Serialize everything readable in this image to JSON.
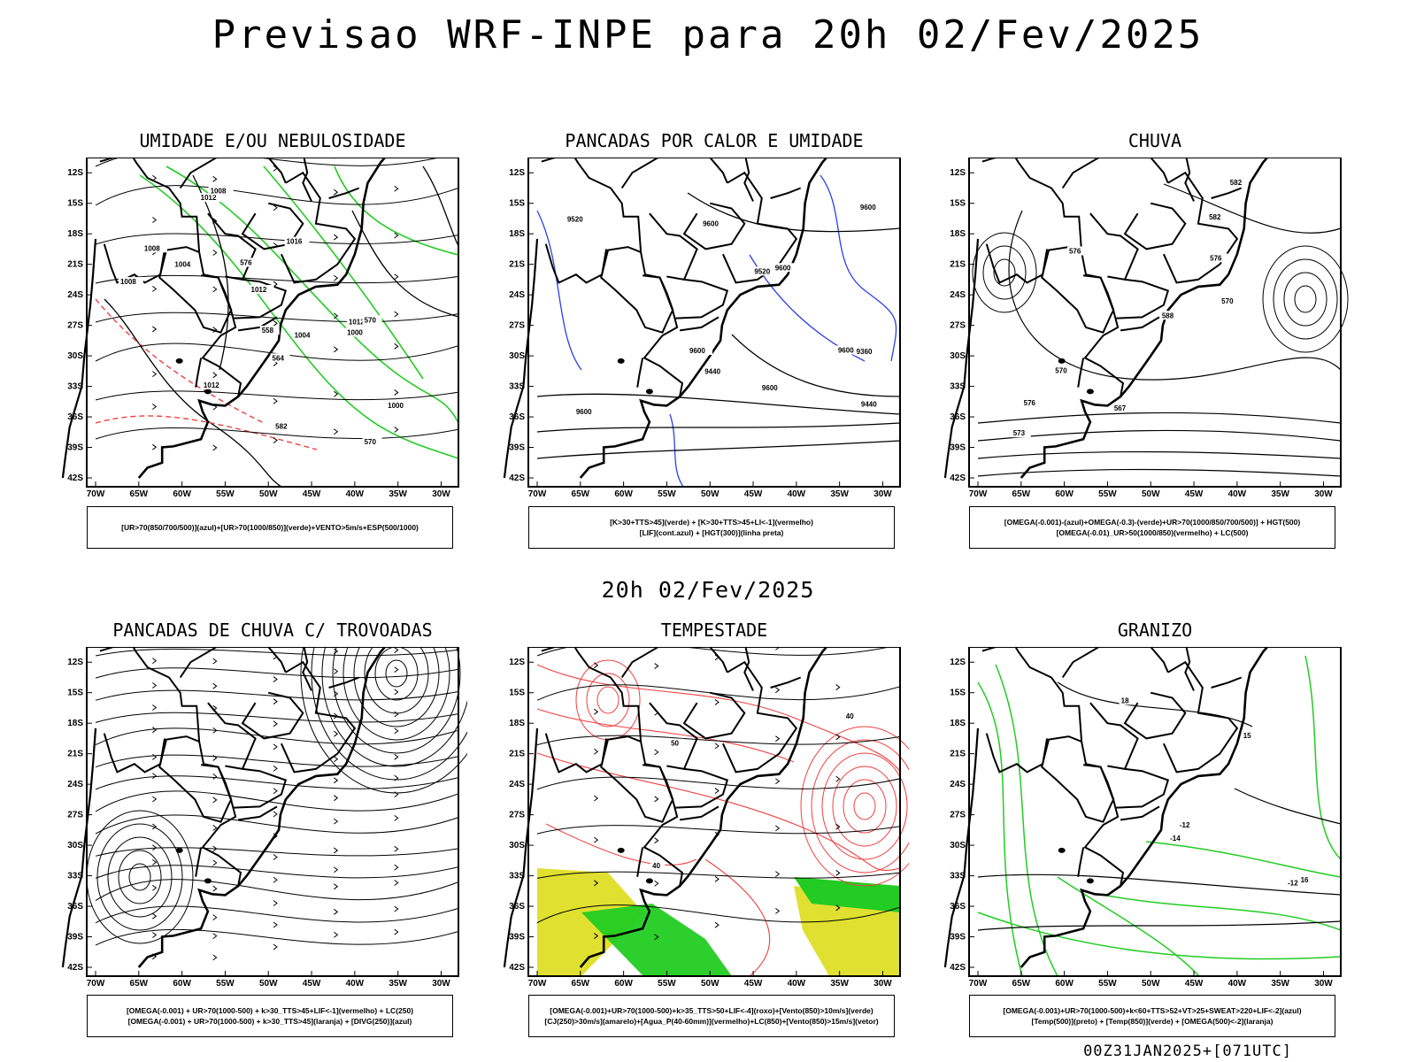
{
  "title": "Previsao WRF-INPE  para 20h 02/Fev/2025",
  "mid_title": "20h 02/Fev/2025",
  "footer": "00Z31JAN2025+[071UTC]",
  "lat_ticks": [
    "12S",
    "15S",
    "18S",
    "21S",
    "24S",
    "27S",
    "30S",
    "33S",
    "36S",
    "39S",
    "42S"
  ],
  "lon_ticks": [
    "70W",
    "65W",
    "60W",
    "55W",
    "50W",
    "45W",
    "40W",
    "35W",
    "30W"
  ],
  "colors": {
    "blue": "#2a3fe8",
    "green": "#22cc22",
    "red": "#f04040",
    "darkteal": "#1f4a45",
    "yellow": "#e0e030",
    "orange": "#f08020",
    "lavender": "#a0a0f0",
    "purple": "#b020c0"
  },
  "panels": [
    {
      "id": "umidade",
      "title": "UMIDADE E/OU NEBULOSIDADE",
      "legend": [
        "[UR>70(850/700/500)](azul)+[UR>70(1000/850)](verde)+VENTO>5m/s+ESP(500/1000)"
      ],
      "contour_labels": [
        "1004",
        "1008",
        "1012",
        "1012",
        "1012",
        "1016",
        "1008",
        "1004",
        "1000",
        "1000",
        "1008",
        "1012",
        "570",
        "570",
        "564",
        "582",
        "576",
        "558"
      ]
    },
    {
      "id": "pancadas_calor",
      "title": "PANCADAS POR CALOR E UMIDADE",
      "legend": [
        "[K>30+TTS>45](verde) + [K>30+TTS>45+LI<-1](vermelho)",
        "[LIF](cont.azul) + [HGT(300)](linha preta)"
      ],
      "contour_labels": [
        "9600",
        "9600",
        "9600",
        "9600",
        "9600",
        "9520",
        "9520",
        "9440",
        "9440",
        "9360",
        "9600",
        "9600"
      ]
    },
    {
      "id": "chuva",
      "title": "CHUVA",
      "legend": [
        "[OMEGA(-0.001)-(azul)+OMEGA(-0.3)-(verde)+UR>70(1000/850/700/500)] + HGT(500)",
        "[OMEGA(-0.01)_UR>50(1000/850)(vermelho) + LC(500)"
      ],
      "contour_labels": [
        "582",
        "576",
        "576",
        "582",
        "588",
        "570",
        "573",
        "567",
        "576",
        "570"
      ]
    },
    {
      "id": "trovoadas",
      "title": "PANCADAS DE CHUVA C/ TROVOADAS",
      "legend": [
        "[OMEGA(-0.001) + UR>70(1000-500) + k>30_TTS>45+LIF<-1](vermelho) + LC(250)",
        "[OMEGA(-0.001) + UR>70(1000-500) + k>30_TTS>45](laranja) + [DIVG(250)](azul)"
      ],
      "contour_labels": []
    },
    {
      "id": "tempestade",
      "title": "TEMPESTADE",
      "legend": [
        "[OMEGA(-0.001)+UR>70(1000-500)+k>35_TTS>50+LIF<-4](roxo)+[Vento(850)>10m/s](verde)",
        "[CJ(250)>30m/s](amarelo)+[Agua_P(40-60mm)](vermelho)+LC(850)+[Vento(850)>15m/s](vetor)"
      ],
      "contour_labels": [
        "40",
        "50",
        "40"
      ]
    },
    {
      "id": "granizo",
      "title": "GRANIZO",
      "legend": [
        "[OMEGA(-0.001)+UR>70(1000-500)+k<60+TTS>52+VT>25+SWEAT>220+LIF<-2](azul)",
        "[Temp(500)](preto) + [Temp(850)](verde) + [OMEGA(500)<-2](laranja)"
      ],
      "contour_labels": [
        "-12",
        "-12",
        "-14",
        "15",
        "18",
        "16"
      ]
    }
  ]
}
